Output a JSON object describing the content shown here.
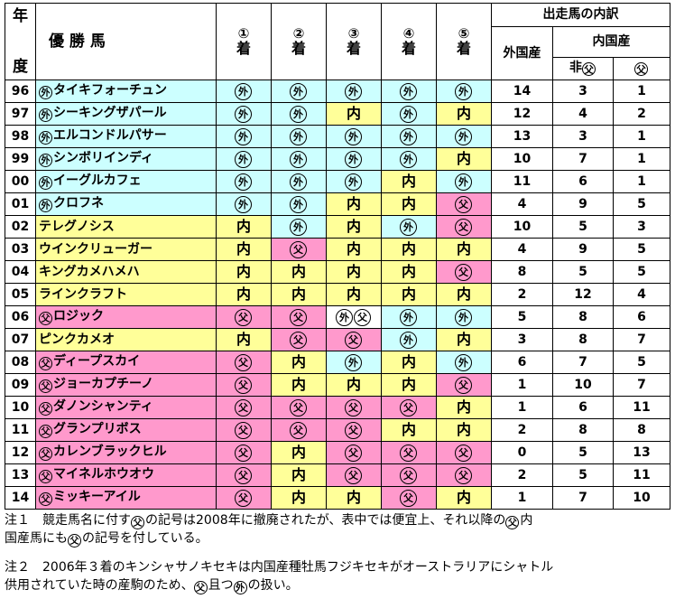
{
  "header": {
    "year": "年\n度",
    "year_top": "年",
    "year_bottom": "度",
    "winner": "優 勝 馬",
    "ranks": [
      {
        "num": "①",
        "label": "着"
      },
      {
        "num": "②",
        "label": "着"
      },
      {
        "num": "③",
        "label": "着"
      },
      {
        "num": "④",
        "label": "着"
      },
      {
        "num": "⑤",
        "label": "着"
      }
    ],
    "breakdown": "出走馬の内訳",
    "foreign": "外国産",
    "domestic": "内国産",
    "non_chichi": "非",
    "chichi_mark": "父",
    "foreign_mark": "外"
  },
  "marks": {
    "foreign": "外",
    "domestic_text": "内",
    "chichi": "父"
  },
  "rows": [
    {
      "year": "96",
      "mark": "外",
      "name": "タイキフォーチュン",
      "name_color": "b",
      "places": [
        [
          "b",
          "外"
        ],
        [
          "b",
          "外"
        ],
        [
          "b",
          "外"
        ],
        [
          "b",
          "外"
        ],
        [
          "b",
          "外"
        ]
      ],
      "foreign": "14",
      "non": "3",
      "chichi": "1"
    },
    {
      "year": "97",
      "mark": "外",
      "name": "シーキングザパール",
      "name_color": "b",
      "places": [
        [
          "b",
          "外"
        ],
        [
          "b",
          "外"
        ],
        [
          "y",
          "内"
        ],
        [
          "b",
          "外"
        ],
        [
          "y",
          "内"
        ]
      ],
      "foreign": "12",
      "non": "4",
      "chichi": "2"
    },
    {
      "year": "98",
      "mark": "外",
      "name": "エルコンドルパサー",
      "name_color": "b",
      "places": [
        [
          "b",
          "外"
        ],
        [
          "b",
          "外"
        ],
        [
          "b",
          "外"
        ],
        [
          "b",
          "外"
        ],
        [
          "b",
          "外"
        ]
      ],
      "foreign": "13",
      "non": "3",
      "chichi": "1"
    },
    {
      "year": "99",
      "mark": "外",
      "name": "シンボリインディ",
      "name_color": "b",
      "places": [
        [
          "b",
          "外"
        ],
        [
          "b",
          "外"
        ],
        [
          "b",
          "外"
        ],
        [
          "b",
          "外"
        ],
        [
          "y",
          "内"
        ]
      ],
      "foreign": "10",
      "non": "7",
      "chichi": "1"
    },
    {
      "year": "00",
      "mark": "外",
      "name": "イーグルカフェ",
      "name_color": "b",
      "places": [
        [
          "b",
          "外"
        ],
        [
          "b",
          "外"
        ],
        [
          "b",
          "外"
        ],
        [
          "y",
          "内"
        ],
        [
          "b",
          "外"
        ]
      ],
      "foreign": "11",
      "non": "6",
      "chichi": "1"
    },
    {
      "year": "01",
      "mark": "外",
      "name": "クロフネ",
      "name_color": "b",
      "places": [
        [
          "b",
          "外"
        ],
        [
          "b",
          "外"
        ],
        [
          "y",
          "内"
        ],
        [
          "y",
          "内"
        ],
        [
          "p",
          "父"
        ]
      ],
      "foreign": "4",
      "non": "9",
      "chichi": "5"
    },
    {
      "year": "02",
      "mark": "",
      "name": "テレグノシス",
      "name_color": "y",
      "places": [
        [
          "y",
          "内"
        ],
        [
          "b",
          "外"
        ],
        [
          "y",
          "内"
        ],
        [
          "b",
          "外"
        ],
        [
          "p",
          "父"
        ]
      ],
      "foreign": "10",
      "non": "5",
      "chichi": "3"
    },
    {
      "year": "03",
      "mark": "",
      "name": "ウインクリューガー",
      "name_color": "y",
      "places": [
        [
          "y",
          "内"
        ],
        [
          "p",
          "父"
        ],
        [
          "y",
          "内"
        ],
        [
          "y",
          "内"
        ],
        [
          "y",
          "内"
        ]
      ],
      "foreign": "4",
      "non": "9",
      "chichi": "5"
    },
    {
      "year": "04",
      "mark": "",
      "name": "キングカメハメハ",
      "name_color": "y",
      "places": [
        [
          "y",
          "内"
        ],
        [
          "y",
          "内"
        ],
        [
          "y",
          "内"
        ],
        [
          "y",
          "内"
        ],
        [
          "p",
          "父"
        ]
      ],
      "foreign": "8",
      "non": "5",
      "chichi": "5"
    },
    {
      "year": "05",
      "mark": "",
      "name": "ラインクラフト",
      "name_color": "y",
      "places": [
        [
          "y",
          "内"
        ],
        [
          "y",
          "内"
        ],
        [
          "y",
          "内"
        ],
        [
          "y",
          "内"
        ],
        [
          "y",
          "内"
        ]
      ],
      "foreign": "2",
      "non": "12",
      "chichi": "4"
    },
    {
      "year": "06",
      "mark": "父",
      "name": "ロジック",
      "name_color": "p",
      "places": [
        [
          "p",
          "父"
        ],
        [
          "p",
          "父"
        ],
        [
          "w",
          "外父"
        ],
        [
          "b",
          "外"
        ],
        [
          "b",
          "外"
        ]
      ],
      "foreign": "5",
      "non": "8",
      "chichi": "6"
    },
    {
      "year": "07",
      "mark": "",
      "name": "ピンクカメオ",
      "name_color": "y",
      "places": [
        [
          "y",
          "内"
        ],
        [
          "p",
          "父"
        ],
        [
          "p",
          "父"
        ],
        [
          "b",
          "外"
        ],
        [
          "y",
          "内"
        ]
      ],
      "foreign": "3",
      "non": "8",
      "chichi": "7"
    },
    {
      "year": "08",
      "mark": "父",
      "name": "ディープスカイ",
      "name_color": "p",
      "places": [
        [
          "p",
          "父"
        ],
        [
          "y",
          "内"
        ],
        [
          "b",
          "外"
        ],
        [
          "y",
          "内"
        ],
        [
          "b",
          "外"
        ]
      ],
      "foreign": "6",
      "non": "7",
      "chichi": "5"
    },
    {
      "year": "09",
      "mark": "父",
      "name": "ジョーカプチーノ",
      "name_color": "p",
      "places": [
        [
          "p",
          "父"
        ],
        [
          "y",
          "内"
        ],
        [
          "y",
          "内"
        ],
        [
          "y",
          "内"
        ],
        [
          "p",
          "父"
        ]
      ],
      "foreign": "1",
      "non": "10",
      "chichi": "7"
    },
    {
      "year": "10",
      "mark": "父",
      "name": "ダノンシャンティ",
      "name_color": "p",
      "places": [
        [
          "p",
          "父"
        ],
        [
          "p",
          "父"
        ],
        [
          "p",
          "父"
        ],
        [
          "p",
          "父"
        ],
        [
          "y",
          "内"
        ]
      ],
      "foreign": "1",
      "non": "6",
      "chichi": "11"
    },
    {
      "year": "11",
      "mark": "父",
      "name": "グランプリボス",
      "name_color": "p",
      "places": [
        [
          "p",
          "父"
        ],
        [
          "p",
          "父"
        ],
        [
          "p",
          "父"
        ],
        [
          "y",
          "内"
        ],
        [
          "y",
          "内"
        ]
      ],
      "foreign": "2",
      "non": "8",
      "chichi": "8"
    },
    {
      "year": "12",
      "mark": "父",
      "name": "カレンブラックヒル",
      "name_color": "p",
      "places": [
        [
          "p",
          "父"
        ],
        [
          "y",
          "内"
        ],
        [
          "p",
          "父"
        ],
        [
          "p",
          "父"
        ],
        [
          "p",
          "父"
        ]
      ],
      "foreign": "0",
      "non": "5",
      "chichi": "13"
    },
    {
      "year": "13",
      "mark": "父",
      "name": "マイネルホウオウ",
      "name_color": "p",
      "places": [
        [
          "p",
          "父"
        ],
        [
          "y",
          "内"
        ],
        [
          "p",
          "父"
        ],
        [
          "p",
          "父"
        ],
        [
          "p",
          "父"
        ]
      ],
      "foreign": "2",
      "non": "5",
      "chichi": "11"
    },
    {
      "year": "14",
      "mark": "父",
      "name": "ミッキーアイル",
      "name_color": "p",
      "places": [
        [
          "p",
          "父"
        ],
        [
          "y",
          "内"
        ],
        [
          "y",
          "内"
        ],
        [
          "p",
          "父"
        ],
        [
          "y",
          "内"
        ]
      ],
      "foreign": "1",
      "non": "7",
      "chichi": "10"
    }
  ],
  "notes": {
    "note1_line1": "注１　競走馬名に付す父の記号は2008年に撤廃されたが、表中では便宜上、それ以降の父内",
    "note1_line2": "国産馬にも父の記号を付している。",
    "note2_line1": "注２　2006年３着のキンシャサノキセキは内国産種牡馬フジキセキがオーストラリアにシャトル",
    "note2_line2": "供用されていた時の産駒のため、父且つ外の扱い。"
  },
  "colors": {
    "blue": "#ccffff",
    "yellow": "#ffff99",
    "pink": "#ff99cc"
  }
}
